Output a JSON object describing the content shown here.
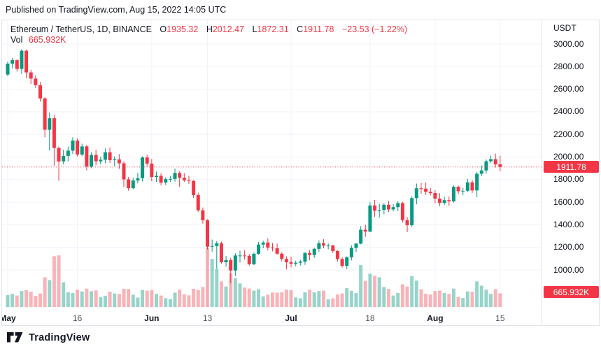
{
  "header": {
    "published_line": "Published on TradingView.com, Aug 15, 2022 14:05 UTC"
  },
  "legend": {
    "symbol_title": "Ethereum / TetherUS, 1D, BINANCE",
    "open_label": "O",
    "open_value": "1935.32",
    "high_label": "H",
    "high_value": "2012.47",
    "low_label": "L",
    "low_value": "1872.31",
    "close_label": "C",
    "close_value": "1911.78",
    "change_text": "−23.53 (−1.22%)",
    "volume_label": "Vol",
    "volume_value": "665.932K"
  },
  "price_axis": {
    "unit": "USDT",
    "last_price_badge": "1911.78",
    "volume_badge": "665.932K"
  },
  "footer": {
    "brand": "TradingView"
  },
  "colors": {
    "up": "#089981",
    "down": "#F23645",
    "vol_up": "rgba(8,153,129,0.42)",
    "vol_down": "rgba(242,54,69,0.38)",
    "grid": "#F0F3FA",
    "border": "#E0E3EB",
    "text": "#131722",
    "badge_bg": "#F23645",
    "badge_text": "#FFFFFF"
  },
  "chart_data": {
    "type": "candlestick",
    "title": "Ethereum / TetherUS, 1D, BINANCE",
    "symbol": "ETHUSDT",
    "exchange": "BINANCE",
    "interval": "1D",
    "quote_unit": "USDT",
    "grid": true,
    "legend_position": "top-left",
    "visible_price_range": [
      850,
      3060
    ],
    "visible_date_range": [
      "2022-05-01",
      "2022-08-15"
    ],
    "last_bar": {
      "open": 1935.32,
      "high": 2012.47,
      "low": 1872.31,
      "close": 1911.78,
      "change": -23.53,
      "change_pct": -1.22,
      "volume_K": 665.932
    },
    "y_ticks": [
      3000,
      2800,
      2600,
      2400,
      2200,
      2000,
      1800,
      1600,
      1400,
      1200,
      1000
    ],
    "x_ticks": [
      {
        "label": "May",
        "day_index": 0,
        "type": "month"
      },
      {
        "label": "16",
        "day_index": 15,
        "type": "day"
      },
      {
        "label": "Jun",
        "day_index": 31,
        "type": "month"
      },
      {
        "label": "13",
        "day_index": 43,
        "type": "day"
      },
      {
        "label": "Jul",
        "day_index": 61,
        "type": "month"
      },
      {
        "label": "18",
        "day_index": 78,
        "type": "day"
      },
      {
        "label": "Aug",
        "day_index": 92,
        "type": "month"
      },
      {
        "label": "15",
        "day_index": 106,
        "type": "day"
      }
    ],
    "columns": [
      "date",
      "open",
      "high",
      "low",
      "close",
      "volume_K"
    ],
    "candles": [
      [
        "2022-05-01",
        2730,
        2845,
        2716,
        2827,
        580
      ],
      [
        "2022-05-02",
        2827,
        2877,
        2785,
        2857,
        640
      ],
      [
        "2022-05-03",
        2857,
        2868,
        2756,
        2780,
        560
      ],
      [
        "2022-05-04",
        2780,
        2955,
        2735,
        2941,
        780
      ],
      [
        "2022-05-05",
        2941,
        2952,
        2700,
        2749,
        820
      ],
      [
        "2022-05-06",
        2749,
        2772,
        2647,
        2694,
        750
      ],
      [
        "2022-05-07",
        2694,
        2723,
        2612,
        2636,
        540
      ],
      [
        "2022-05-08",
        2636,
        2665,
        2490,
        2519,
        660
      ],
      [
        "2022-05-09",
        2519,
        2530,
        2175,
        2241,
        1450
      ],
      [
        "2022-05-10",
        2241,
        2395,
        2058,
        2343,
        1320
      ],
      [
        "2022-05-11",
        2343,
        2372,
        1923,
        2080,
        2480
      ],
      [
        "2022-05-12",
        2080,
        2094,
        1789,
        1961,
        2520
      ],
      [
        "2022-05-13",
        1961,
        2065,
        1936,
        2010,
        1210
      ],
      [
        "2022-05-14",
        2010,
        2092,
        1961,
        2056,
        720
      ],
      [
        "2022-05-15",
        2056,
        2175,
        2026,
        2146,
        680
      ],
      [
        "2022-05-16",
        2146,
        2166,
        2005,
        2022,
        850
      ],
      [
        "2022-05-17",
        2022,
        2118,
        2008,
        2094,
        760
      ],
      [
        "2022-05-18",
        2094,
        2108,
        1882,
        1916,
        900
      ],
      [
        "2022-05-19",
        1916,
        2041,
        1901,
        2018,
        770
      ],
      [
        "2022-05-20",
        2018,
        2064,
        1926,
        1962,
        810
      ],
      [
        "2022-05-21",
        1962,
        2004,
        1935,
        1976,
        490
      ],
      [
        "2022-05-22",
        1976,
        2076,
        1945,
        2042,
        550
      ],
      [
        "2022-05-23",
        2042,
        2085,
        1948,
        1972,
        750
      ],
      [
        "2022-05-24",
        1972,
        2006,
        1918,
        1979,
        660
      ],
      [
        "2022-05-25",
        1979,
        2026,
        1895,
        1944,
        640
      ],
      [
        "2022-05-26",
        1944,
        1962,
        1737,
        1802,
        890
      ],
      [
        "2022-05-27",
        1802,
        1824,
        1701,
        1724,
        880
      ],
      [
        "2022-05-28",
        1724,
        1817,
        1714,
        1792,
        600
      ],
      [
        "2022-05-29",
        1792,
        1861,
        1766,
        1812,
        460
      ],
      [
        "2022-05-30",
        1812,
        2005,
        1784,
        1996,
        830
      ],
      [
        "2022-05-31",
        1996,
        2021,
        1917,
        1942,
        800
      ],
      [
        "2022-06-01",
        1942,
        1983,
        1785,
        1823,
        820
      ],
      [
        "2022-06-02",
        1823,
        1871,
        1780,
        1834,
        640
      ],
      [
        "2022-06-03",
        1834,
        1857,
        1751,
        1774,
        560
      ],
      [
        "2022-06-04",
        1774,
        1821,
        1752,
        1804,
        430
      ],
      [
        "2022-06-05",
        1804,
        1833,
        1780,
        1806,
        380
      ],
      [
        "2022-06-06",
        1806,
        1898,
        1782,
        1859,
        700
      ],
      [
        "2022-06-07",
        1859,
        1875,
        1735,
        1816,
        850
      ],
      [
        "2022-06-08",
        1816,
        1857,
        1780,
        1794,
        620
      ],
      [
        "2022-06-09",
        1794,
        1834,
        1762,
        1789,
        570
      ],
      [
        "2022-06-10",
        1789,
        1795,
        1638,
        1663,
        890
      ],
      [
        "2022-06-11",
        1663,
        1684,
        1513,
        1528,
        830
      ],
      [
        "2022-06-12",
        1528,
        1553,
        1410,
        1440,
        980
      ],
      [
        "2022-06-13",
        1440,
        1448,
        1182,
        1206,
        2900
      ],
      [
        "2022-06-14",
        1206,
        1269,
        1162,
        1212,
        2350
      ],
      [
        "2022-06-15",
        1212,
        1257,
        1010,
        1236,
        1850
      ],
      [
        "2022-06-16",
        1236,
        1250,
        1057,
        1068,
        1250
      ],
      [
        "2022-06-17",
        1068,
        1125,
        1030,
        1087,
        1000
      ],
      [
        "2022-06-18",
        1087,
        1107,
        881,
        995,
        1650
      ],
      [
        "2022-06-19",
        995,
        1148,
        946,
        1128,
        1400
      ],
      [
        "2022-06-20",
        1128,
        1171,
        1066,
        1128,
        1150
      ],
      [
        "2022-06-21",
        1128,
        1176,
        1090,
        1125,
        950
      ],
      [
        "2022-06-22",
        1125,
        1142,
        1039,
        1051,
        900
      ],
      [
        "2022-06-23",
        1051,
        1155,
        1043,
        1143,
        800
      ],
      [
        "2022-06-24",
        1143,
        1248,
        1135,
        1225,
        870
      ],
      [
        "2022-06-25",
        1225,
        1260,
        1192,
        1243,
        520
      ],
      [
        "2022-06-26",
        1243,
        1280,
        1173,
        1198,
        600
      ],
      [
        "2022-06-27",
        1198,
        1239,
        1165,
        1192,
        710
      ],
      [
        "2022-06-28",
        1192,
        1233,
        1134,
        1144,
        700
      ],
      [
        "2022-06-29",
        1144,
        1157,
        1075,
        1098,
        720
      ],
      [
        "2022-06-30",
        1098,
        1120,
        1005,
        1069,
        850
      ],
      [
        "2022-07-01",
        1069,
        1118,
        1023,
        1056,
        820
      ],
      [
        "2022-07-02",
        1056,
        1082,
        1034,
        1064,
        470
      ],
      [
        "2022-07-03",
        1064,
        1090,
        1040,
        1074,
        430
      ],
      [
        "2022-07-04",
        1074,
        1157,
        1045,
        1151,
        720
      ],
      [
        "2022-07-05",
        1151,
        1176,
        1086,
        1132,
        840
      ],
      [
        "2022-07-06",
        1132,
        1197,
        1108,
        1187,
        720
      ],
      [
        "2022-07-07",
        1187,
        1262,
        1162,
        1237,
        780
      ],
      [
        "2022-07-08",
        1237,
        1272,
        1192,
        1216,
        800
      ],
      [
        "2022-07-09",
        1216,
        1236,
        1183,
        1217,
        380
      ],
      [
        "2022-07-10",
        1217,
        1222,
        1149,
        1168,
        420
      ],
      [
        "2022-07-11",
        1168,
        1173,
        1075,
        1097,
        610
      ],
      [
        "2022-07-12",
        1097,
        1113,
        1021,
        1037,
        660
      ],
      [
        "2022-07-13",
        1037,
        1120,
        1006,
        1112,
        920
      ],
      [
        "2022-07-14",
        1112,
        1218,
        1085,
        1195,
        790
      ],
      [
        "2022-07-15",
        1195,
        1241,
        1159,
        1233,
        680
      ],
      [
        "2022-07-16",
        1233,
        1388,
        1227,
        1356,
        2050
      ],
      [
        "2022-07-17",
        1356,
        1400,
        1293,
        1340,
        1280
      ],
      [
        "2022-07-18",
        1340,
        1600,
        1334,
        1571,
        1620
      ],
      [
        "2022-07-19",
        1571,
        1620,
        1470,
        1525,
        1520
      ],
      [
        "2022-07-20",
        1525,
        1585,
        1463,
        1532,
        1450
      ],
      [
        "2022-07-21",
        1532,
        1593,
        1492,
        1577,
        980
      ],
      [
        "2022-07-22",
        1577,
        1612,
        1513,
        1536,
        880
      ],
      [
        "2022-07-23",
        1536,
        1582,
        1519,
        1556,
        560
      ],
      [
        "2022-07-24",
        1556,
        1610,
        1521,
        1592,
        690
      ],
      [
        "2022-07-25",
        1592,
        1604,
        1420,
        1441,
        1110
      ],
      [
        "2022-07-26",
        1441,
        1469,
        1335,
        1396,
        1000
      ],
      [
        "2022-07-27",
        1396,
        1652,
        1382,
        1636,
        1510
      ],
      [
        "2022-07-28",
        1636,
        1765,
        1581,
        1723,
        1290
      ],
      [
        "2022-07-29",
        1723,
        1770,
        1675,
        1720,
        870
      ],
      [
        "2022-07-30",
        1720,
        1776,
        1663,
        1692,
        650
      ],
      [
        "2022-07-31",
        1692,
        1725,
        1660,
        1681,
        610
      ],
      [
        "2022-08-01",
        1681,
        1707,
        1592,
        1632,
        780
      ],
      [
        "2022-08-02",
        1632,
        1679,
        1565,
        1594,
        800
      ],
      [
        "2022-08-03",
        1594,
        1648,
        1575,
        1618,
        680
      ],
      [
        "2022-08-04",
        1618,
        1651,
        1568,
        1608,
        640
      ],
      [
        "2022-08-05",
        1608,
        1749,
        1597,
        1737,
        900
      ],
      [
        "2022-08-06",
        1737,
        1748,
        1671,
        1697,
        500
      ],
      [
        "2022-08-07",
        1697,
        1727,
        1661,
        1701,
        440
      ],
      [
        "2022-08-08",
        1701,
        1805,
        1690,
        1776,
        760
      ],
      [
        "2022-08-09",
        1776,
        1795,
        1682,
        1704,
        750
      ],
      [
        "2022-08-10",
        1704,
        1868,
        1645,
        1852,
        1250
      ],
      [
        "2022-08-11",
        1852,
        1926,
        1831,
        1881,
        1040
      ],
      [
        "2022-08-12",
        1881,
        1978,
        1852,
        1962,
        850
      ],
      [
        "2022-08-13",
        1962,
        2014,
        1947,
        1981,
        640
      ],
      [
        "2022-08-14",
        1981,
        2030,
        1907,
        1935,
        870
      ],
      [
        "2022-08-15",
        1935.32,
        2012.47,
        1872.31,
        1911.78,
        665.932
      ]
    ]
  }
}
